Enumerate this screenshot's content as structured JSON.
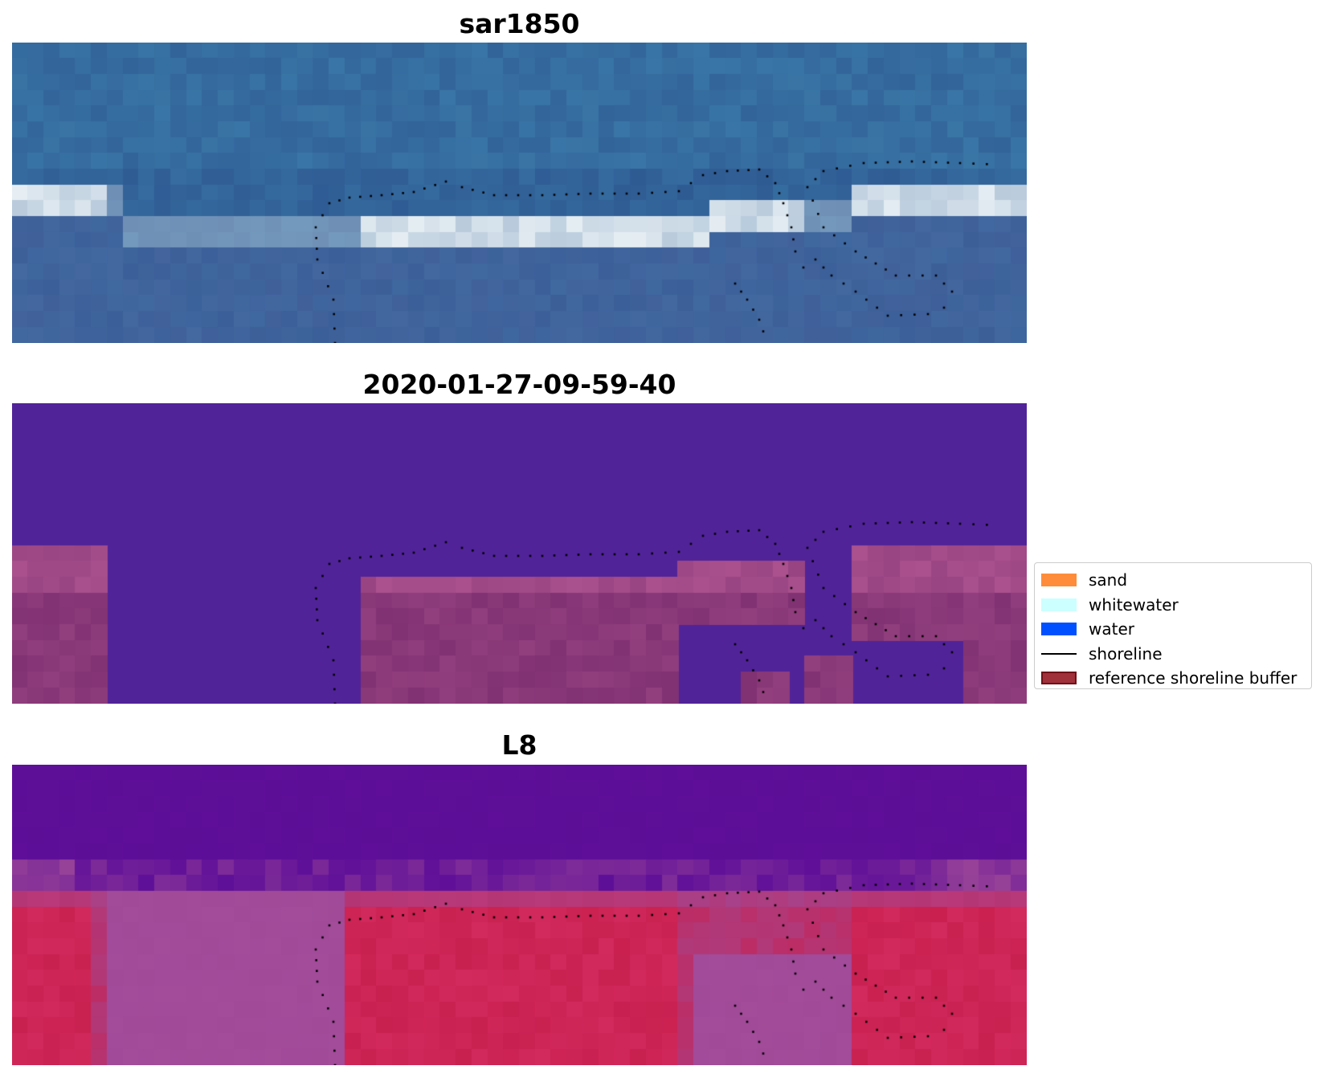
{
  "panels": [
    {
      "title": "sar1850",
      "palette": "rgb"
    },
    {
      "title": "2020-01-27-09-59-40",
      "palette": "classified"
    },
    {
      "title": "L8",
      "palette": "false-color"
    }
  ],
  "legend": {
    "items": [
      {
        "label": "sand",
        "kind": "patch",
        "color": "#ff8c3a"
      },
      {
        "label": "whitewater",
        "kind": "patch",
        "color": "#ccffff"
      },
      {
        "label": "water",
        "kind": "patch",
        "color": "#0050ff"
      },
      {
        "label": "shoreline",
        "kind": "line",
        "color": "#000000"
      },
      {
        "label": "reference shoreline buffer",
        "kind": "patch",
        "color": "#a0303a",
        "edge": "#6e1018"
      }
    ]
  },
  "colors": {
    "rgb_water_deep": "#2f5b93",
    "rgb_water_light": "#3a78a8",
    "rgb_whitewater": "#e6eef3",
    "classified_background": "#512399",
    "classified_buffer": "#7a2d6e",
    "classified_buffer_light": "#b65a96",
    "l8_water": "#5e0f98",
    "l8_land": "#c8204f",
    "l8_mixed": "#a04a98",
    "shoreline_dots": "#000000"
  }
}
